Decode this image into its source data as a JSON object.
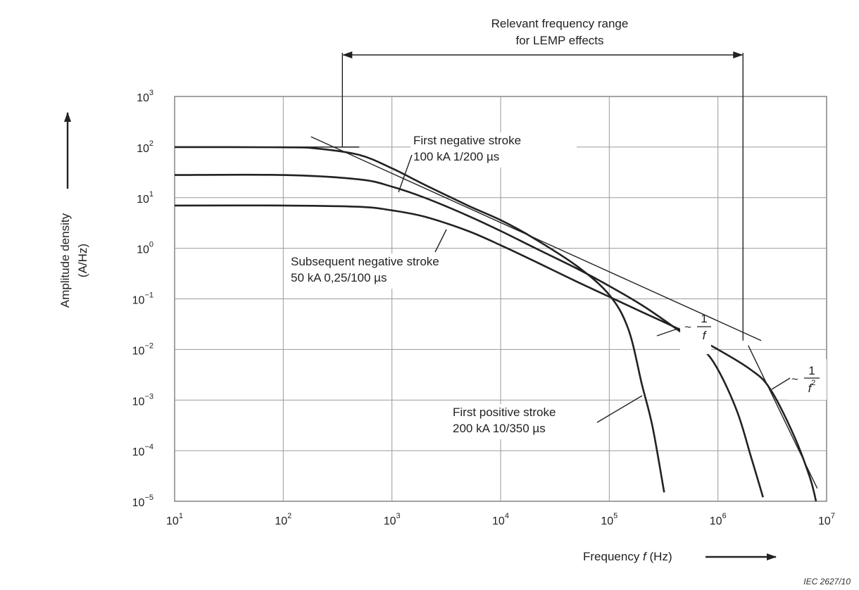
{
  "chart_data": {
    "type": "line",
    "x_scale": "log",
    "y_scale": "log",
    "xlim": [
      10,
      10000000
    ],
    "ylim": [
      1e-05,
      1000
    ],
    "grid": true,
    "x_ticks": [
      {
        "base": "10",
        "exp": "1"
      },
      {
        "base": "10",
        "exp": "2"
      },
      {
        "base": "10",
        "exp": "3"
      },
      {
        "base": "10",
        "exp": "4"
      },
      {
        "base": "10",
        "exp": "5"
      },
      {
        "base": "10",
        "exp": "6"
      },
      {
        "base": "10",
        "exp": "7"
      }
    ],
    "y_ticks": [
      {
        "base": "10",
        "exp": "3"
      },
      {
        "base": "10",
        "exp": "2"
      },
      {
        "base": "10",
        "exp": "1"
      },
      {
        "base": "10",
        "exp": "0"
      },
      {
        "base": "10",
        "exp": "−1"
      },
      {
        "base": "10",
        "exp": "−2"
      },
      {
        "base": "10",
        "exp": "−3"
      },
      {
        "base": "10",
        "exp": "−4"
      },
      {
        "base": "10",
        "exp": "−5"
      }
    ],
    "ylabel_line1": "Amplitude density",
    "ylabel_line2": "(A/Hz)",
    "xlabel_prefix": "Frequency ",
    "xlabel_var": "f",
    "xlabel_unit": "   (Hz)",
    "range_label_line1": "Relevant frequency range",
    "range_label_line2": "for LEMP effects",
    "range_x": [
      350,
      1700000
    ],
    "series": [
      {
        "points": [
          [
            10,
            100
          ],
          [
            100,
            99
          ],
          [
            200,
            94
          ],
          [
            500,
            70
          ],
          [
            1000,
            38
          ],
          [
            2000,
            18
          ],
          [
            5000,
            7
          ],
          [
            10000,
            3.6
          ],
          [
            20000,
            1.6
          ],
          [
            50000,
            0.45
          ],
          [
            100000,
            0.12
          ],
          [
            150000,
            0.025
          ],
          [
            200000,
            0.002
          ],
          [
            250000,
            0.0003
          ],
          [
            320000,
            1.5e-05
          ]
        ]
      },
      {
        "points": [
          [
            10,
            28
          ],
          [
            100,
            28
          ],
          [
            500,
            23
          ],
          [
            1000,
            16.5
          ],
          [
            2000,
            10
          ],
          [
            5000,
            4.4
          ],
          [
            10000,
            2.2
          ],
          [
            20000,
            1.05
          ],
          [
            50000,
            0.4
          ],
          [
            100000,
            0.18
          ],
          [
            200000,
            0.075
          ],
          [
            400000,
            0.027
          ],
          [
            700000,
            0.011
          ],
          [
            1000000,
            0.004
          ],
          [
            1500000,
            0.0006
          ],
          [
            2000000,
            8e-05
          ],
          [
            2600000,
            1.2e-05
          ]
        ]
      },
      {
        "points": [
          [
            10,
            7
          ],
          [
            100,
            7
          ],
          [
            500,
            6.6
          ],
          [
            1000,
            5.6
          ],
          [
            2000,
            4.2
          ],
          [
            5000,
            2.2
          ],
          [
            10000,
            1.15
          ],
          [
            20000,
            0.57
          ],
          [
            50000,
            0.22
          ],
          [
            100000,
            0.11
          ],
          [
            200000,
            0.055
          ],
          [
            500000,
            0.022
          ],
          [
            1000000,
            0.01
          ],
          [
            2000000,
            0.004
          ],
          [
            3000000,
            0.0017
          ],
          [
            5000000,
            0.0002
          ],
          [
            7000000,
            3e-05
          ],
          [
            8000000,
            1e-05
          ]
        ]
      }
    ],
    "asymptote_1_over_f": [
      [
        180,
        160
      ],
      [
        2500000,
        0.015
      ]
    ],
    "asymptote_1_over_f2": [
      [
        1900000,
        0.012
      ],
      [
        8200000,
        1.8e-05
      ]
    ],
    "first_stroke_flat_line": [
      [
        10,
        100
      ],
      [
        500,
        100
      ]
    ],
    "annotations": [
      {
        "lines": [
          "First negative stroke",
          "100 kA  1/200 µs"
        ]
      },
      {
        "lines": [
          "Subsequent negative stroke",
          "50 kA  0,25/100 µs"
        ]
      },
      {
        "lines": [
          "First positive stroke",
          "200 kA  10/350 µs"
        ]
      }
    ],
    "slope_label_1": {
      "tilde": "~",
      "num": "1",
      "den": "f"
    },
    "slope_label_2": {
      "tilde": "~",
      "num": "1",
      "den": "f",
      "den_exp": "2"
    }
  },
  "reference": "IEC   2627/10"
}
